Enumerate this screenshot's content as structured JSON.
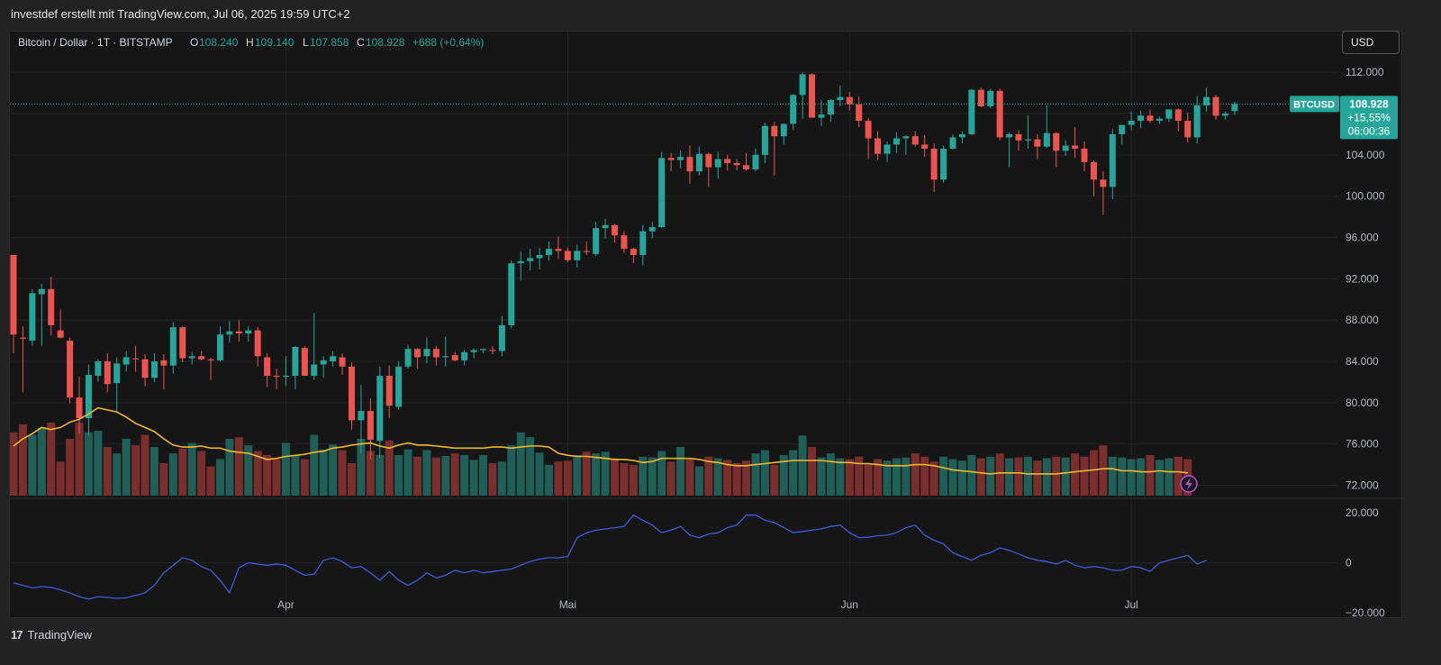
{
  "header": {
    "text": "investdef erstellt mit TradingView.com, Jul 06, 2025 19:59 UTC+2"
  },
  "legend": {
    "symbol": "Bitcoin / Dollar · 1T · BITSTAMP",
    "o_label": "O",
    "o_value": "108.240",
    "h_label": "H",
    "h_value": "109.140",
    "l_label": "L",
    "l_value": "107.858",
    "c_label": "C",
    "c_value": "108.928",
    "change": "+688 (+0,64%)"
  },
  "currency_button": "USD",
  "price_tag": {
    "symbol": "BTCUSD",
    "price": "108.928",
    "change": "+15,55%",
    "countdown": "06:00:36"
  },
  "footer": {
    "logo": "17",
    "brand": "TradingView"
  },
  "colors": {
    "up": "#26a69a",
    "down": "#ef5350",
    "vol_up": "#1f5f58",
    "vol_down": "#7a2e2e",
    "ma": "#f2b82c",
    "osc": "#3e5dd9",
    "bg": "#161616"
  },
  "icons": {
    "alert": "lightning-icon"
  },
  "chart_data": {
    "type": "candlestick",
    "price_ticks": [
      "112.000",
      "108.000",
      "104.000",
      "100.000",
      "96.000",
      "92.000",
      "88.000",
      "84.000",
      "80.000",
      "76.000",
      "72.000"
    ],
    "price_tick_values": [
      112000,
      108000,
      104000,
      100000,
      96000,
      92000,
      88000,
      84000,
      80000,
      76000,
      72000
    ],
    "osc_ticks": [
      "20.000",
      "0",
      "−20.000"
    ],
    "osc_tick_values": [
      20000,
      0,
      -20000
    ],
    "x_labels": [
      "Apr",
      "Mai",
      "Jun",
      "Jul"
    ],
    "x_label_index": [
      29,
      59,
      89,
      119
    ],
    "price_range": [
      71000,
      113500
    ],
    "candles": [
      [
        94300,
        94300,
        84800,
        86600
      ],
      [
        86300,
        87400,
        81000,
        86200
      ],
      [
        86000,
        91000,
        85500,
        90600
      ],
      [
        90500,
        91500,
        85500,
        91000
      ],
      [
        91000,
        92200,
        86500,
        87500
      ],
      [
        87000,
        89000,
        86200,
        86300
      ],
      [
        86000,
        86300,
        79900,
        80500
      ],
      [
        80500,
        82500,
        77000,
        78500
      ],
      [
        78500,
        83700,
        76800,
        82700
      ],
      [
        82600,
        84200,
        82000,
        84000
      ],
      [
        84000,
        84800,
        81000,
        81800
      ],
      [
        81900,
        84400,
        79000,
        83800
      ],
      [
        83700,
        85000,
        83000,
        84400
      ],
      [
        84300,
        85500,
        83000,
        84200
      ],
      [
        84200,
        84700,
        81600,
        82400
      ],
      [
        82400,
        84800,
        82000,
        84000
      ],
      [
        84100,
        84700,
        81300,
        83600
      ],
      [
        83600,
        87800,
        82800,
        87300
      ],
      [
        87300,
        87400,
        83900,
        84300
      ],
      [
        84300,
        84900,
        83700,
        84500
      ],
      [
        84500,
        85000,
        84100,
        84200
      ],
      [
        84200,
        84300,
        82200,
        84100
      ],
      [
        84100,
        87400,
        84000,
        86600
      ],
      [
        86600,
        87900,
        85800,
        86900
      ],
      [
        86900,
        88000,
        85900,
        86700
      ],
      [
        86700,
        87400,
        85900,
        87000
      ],
      [
        87000,
        87300,
        83500,
        84500
      ],
      [
        84400,
        84800,
        81500,
        82600
      ],
      [
        82600,
        83300,
        81300,
        82500
      ],
      [
        82500,
        84500,
        81600,
        82600
      ],
      [
        82600,
        85500,
        81300,
        85400
      ],
      [
        85300,
        85500,
        82700,
        82600
      ],
      [
        82600,
        88700,
        82200,
        83700
      ],
      [
        83700,
        84500,
        82400,
        84100
      ],
      [
        84000,
        85000,
        83500,
        84500
      ],
      [
        84400,
        84800,
        82700,
        83500
      ],
      [
        83500,
        83900,
        77400,
        78300
      ],
      [
        78300,
        81700,
        75100,
        79200
      ],
      [
        79200,
        80400,
        74500,
        76400
      ],
      [
        76300,
        83500,
        74600,
        82600
      ],
      [
        82600,
        83600,
        78500,
        79700
      ],
      [
        79600,
        84000,
        79300,
        83500
      ],
      [
        83500,
        85600,
        83300,
        85200
      ],
      [
        85200,
        85300,
        83300,
        84400
      ],
      [
        84500,
        86300,
        83800,
        85200
      ],
      [
        85200,
        85500,
        83600,
        84400
      ],
      [
        84400,
        86400,
        83500,
        84500
      ],
      [
        84600,
        84900,
        84000,
        84100
      ],
      [
        84100,
        85100,
        83600,
        84900
      ],
      [
        84900,
        85300,
        84300,
        85100
      ],
      [
        85100,
        85200,
        84800,
        85200
      ],
      [
        85100,
        85500,
        84700,
        85000
      ],
      [
        85000,
        88400,
        84500,
        87500
      ],
      [
        87500,
        93800,
        87200,
        93500
      ],
      [
        93500,
        94600,
        91800,
        93700
      ],
      [
        93700,
        94900,
        92800,
        94000
      ],
      [
        94000,
        95000,
        92900,
        94300
      ],
      [
        94300,
        95600,
        93800,
        94900
      ],
      [
        94900,
        96100,
        93900,
        94700
      ],
      [
        94700,
        95000,
        93600,
        93800
      ],
      [
        93800,
        95300,
        93100,
        94700
      ],
      [
        94700,
        95600,
        94300,
        94600
      ],
      [
        94400,
        97500,
        94200,
        96900
      ],
      [
        96900,
        97800,
        95900,
        97200
      ],
      [
        97200,
        97300,
        95500,
        96200
      ],
      [
        96200,
        96600,
        94500,
        94900
      ],
      [
        94900,
        95000,
        93500,
        94300
      ],
      [
        94300,
        97200,
        93300,
        96600
      ],
      [
        96600,
        97500,
        95900,
        97000
      ],
      [
        97000,
        104300,
        96900,
        103700
      ],
      [
        103700,
        104200,
        102400,
        103500
      ],
      [
        103500,
        104400,
        102700,
        103800
      ],
      [
        103800,
        104900,
        101200,
        102400
      ],
      [
        102400,
        104800,
        102000,
        104100
      ],
      [
        104100,
        104200,
        100900,
        102800
      ],
      [
        102800,
        104300,
        101700,
        103600
      ],
      [
        103600,
        104000,
        102500,
        103200
      ],
      [
        103200,
        103600,
        102500,
        103000
      ],
      [
        103000,
        104200,
        102500,
        102600
      ],
      [
        102600,
        104600,
        102400,
        104000
      ],
      [
        104000,
        107100,
        103200,
        106800
      ],
      [
        106800,
        107200,
        102000,
        105800
      ],
      [
        105800,
        107000,
        105000,
        107000
      ],
      [
        107000,
        109900,
        106400,
        109800
      ],
      [
        109800,
        112000,
        107500,
        111800
      ],
      [
        111800,
        111900,
        107600,
        107600
      ],
      [
        107600,
        109300,
        106800,
        107900
      ],
      [
        107900,
        109400,
        107200,
        109300
      ],
      [
        109300,
        110700,
        108700,
        109600
      ],
      [
        109600,
        110100,
        108300,
        108900
      ],
      [
        108900,
        109700,
        106700,
        107300
      ],
      [
        107300,
        107600,
        103600,
        105600
      ],
      [
        105600,
        106300,
        103500,
        104100
      ],
      [
        104100,
        105300,
        103300,
        105000
      ],
      [
        105000,
        106200,
        104200,
        105600
      ],
      [
        105600,
        105900,
        104000,
        105800
      ],
      [
        105800,
        106300,
        104800,
        105000
      ],
      [
        105000,
        105900,
        103800,
        104600
      ],
      [
        104600,
        105100,
        100400,
        101600
      ],
      [
        101600,
        104900,
        101300,
        104600
      ],
      [
        104600,
        106000,
        104500,
        105700
      ],
      [
        105700,
        106300,
        105100,
        106000
      ],
      [
        106000,
        110400,
        105900,
        110300
      ],
      [
        110300,
        110500,
        108600,
        108700
      ],
      [
        108700,
        110400,
        108500,
        110200
      ],
      [
        110200,
        110400,
        105400,
        105700
      ],
      [
        105700,
        106200,
        102800,
        106000
      ],
      [
        106000,
        106400,
        104400,
        105400
      ],
      [
        105400,
        107800,
        104600,
        105500
      ],
      [
        105500,
        106000,
        103600,
        104800
      ],
      [
        104800,
        108800,
        104700,
        106100
      ],
      [
        106100,
        106200,
        102800,
        104400
      ],
      [
        104400,
        105400,
        103900,
        104900
      ],
      [
        104900,
        106700,
        103700,
        104600
      ],
      [
        104600,
        105300,
        102400,
        103300
      ],
      [
        103300,
        103500,
        100000,
        101600
      ],
      [
        101600,
        102400,
        98200,
        100900
      ],
      [
        100900,
        106500,
        99700,
        106000
      ],
      [
        106000,
        106700,
        105000,
        106900
      ],
      [
        106900,
        108200,
        106400,
        107300
      ],
      [
        107300,
        108300,
        106600,
        107800
      ],
      [
        107800,
        108400,
        107100,
        107300
      ],
      [
        107300,
        107700,
        107000,
        107500
      ],
      [
        107500,
        108400,
        107200,
        108400
      ],
      [
        108400,
        108500,
        106300,
        107300
      ],
      [
        107300,
        108100,
        105200,
        105700
      ],
      [
        105700,
        109700,
        105100,
        108800
      ],
      [
        108800,
        110500,
        108200,
        109600
      ],
      [
        109600,
        109800,
        107400,
        107800
      ],
      [
        107800,
        108200,
        107400,
        108000
      ],
      [
        108240,
        109140,
        107858,
        108928
      ]
    ],
    "volume": [
      78,
      88,
      75,
      84,
      90,
      42,
      70,
      90,
      78,
      80,
      60,
      52,
      70,
      62,
      75,
      60,
      40,
      52,
      58,
      65,
      55,
      36,
      45,
      70,
      72,
      62,
      55,
      50,
      45,
      65,
      50,
      45,
      75,
      57,
      63,
      56,
      40,
      70,
      55,
      50,
      68,
      50,
      57,
      48,
      56,
      47,
      49,
      52,
      50,
      44,
      50,
      40,
      42,
      62,
      78,
      72,
      53,
      38,
      42,
      43,
      50,
      54,
      52,
      54,
      46,
      40,
      38,
      48,
      47,
      55,
      42,
      60,
      45,
      36,
      48,
      46,
      44,
      40,
      43,
      52,
      56,
      38,
      50,
      56,
      74,
      60,
      47,
      52,
      46,
      45,
      48,
      40,
      45,
      43,
      46,
      47,
      52,
      48,
      42,
      48,
      45,
      43,
      50,
      46,
      48,
      52,
      46,
      47,
      48,
      43,
      46,
      48,
      47,
      52,
      48,
      56,
      62,
      48,
      47,
      45,
      46,
      50,
      44,
      46,
      48,
      45
    ],
    "ma": [
      75.8,
      76.5,
      77.0,
      77.6,
      77.4,
      77.6,
      78.1,
      78.4,
      78.9,
      79.5,
      79.3,
      79.1,
      78.6,
      78.0,
      77.6,
      77.2,
      76.5,
      75.9,
      75.7,
      75.7,
      75.8,
      75.6,
      75.6,
      75.3,
      75.2,
      75.1,
      74.8,
      74.5,
      74.6,
      74.8,
      74.9,
      75.0,
      75.2,
      75.3,
      75.6,
      75.7,
      75.9,
      76.0,
      76.1,
      75.8,
      75.6,
      75.9,
      76.1,
      75.9,
      75.9,
      75.8,
      75.7,
      75.6,
      75.6,
      75.6,
      75.6,
      75.7,
      75.7,
      75.6,
      75.7,
      75.8,
      75.8,
      75.7,
      75.1,
      74.9,
      74.8,
      74.8,
      74.7,
      74.6,
      74.5,
      74.5,
      74.4,
      74.2,
      74.3,
      74.6,
      74.6,
      74.6,
      74.6,
      74.5,
      74.3,
      74.2,
      74.0,
      73.9,
      73.9,
      74.0,
      74.1,
      74.2,
      74.3,
      74.4,
      74.4,
      74.4,
      74.4,
      74.3,
      74.2,
      74.2,
      74.1,
      74.1,
      74.0,
      73.9,
      73.9,
      73.9,
      74.0,
      74.0,
      73.9,
      73.7,
      73.5,
      73.4,
      73.3,
      73.2,
      73.1,
      73.2,
      73.2,
      73.2,
      73.1,
      73.1,
      73.1,
      73.1,
      73.2,
      73.3,
      73.4,
      73.5,
      73.6,
      73.6,
      73.4,
      73.4,
      73.3,
      73.3,
      73.4,
      73.3,
      73.3,
      73.2
    ],
    "osc": [
      -8000,
      -9000,
      -10000,
      -9500,
      -9800,
      -10800,
      -12000,
      -13500,
      -14500,
      -13500,
      -13800,
      -14200,
      -14000,
      -13000,
      -12000,
      -9000,
      -4000,
      -1000,
      2000,
      1000,
      -1500,
      -3000,
      -7000,
      -12000,
      -2000,
      0,
      -500,
      -1000,
      -500,
      -1000,
      -3000,
      -5000,
      -4500,
      1000,
      2000,
      500,
      -2000,
      -1500,
      -4000,
      -7000,
      -3500,
      -7000,
      -9000,
      -7000,
      -4000,
      -6000,
      -5000,
      -3000,
      -4000,
      -3000,
      -4000,
      -3500,
      -3000,
      -2500,
      -1000,
      500,
      1500,
      2000,
      2000,
      2500,
      10000,
      12000,
      13000,
      13500,
      14000,
      14500,
      19000,
      17000,
      15000,
      12000,
      13000,
      14500,
      11000,
      10000,
      11500,
      12000,
      14000,
      15000,
      19000,
      19000,
      17000,
      16000,
      14000,
      12000,
      12500,
      13000,
      13500,
      14500,
      15000,
      12000,
      10000,
      10200,
      10800,
      11000,
      12000,
      14000,
      15000,
      11000,
      9000,
      7500,
      4000,
      2500,
      1000,
      3000,
      4000,
      6000,
      5000,
      3500,
      2000,
      1000,
      500,
      -500,
      1000,
      -1000,
      -2000,
      -1500,
      -2000,
      -3000,
      -3000,
      -1500,
      -2000,
      -3500,
      0,
      1000,
      2000,
      3000,
      -500,
      1000
    ],
    "osc_range": [
      -21000,
      25000
    ]
  }
}
